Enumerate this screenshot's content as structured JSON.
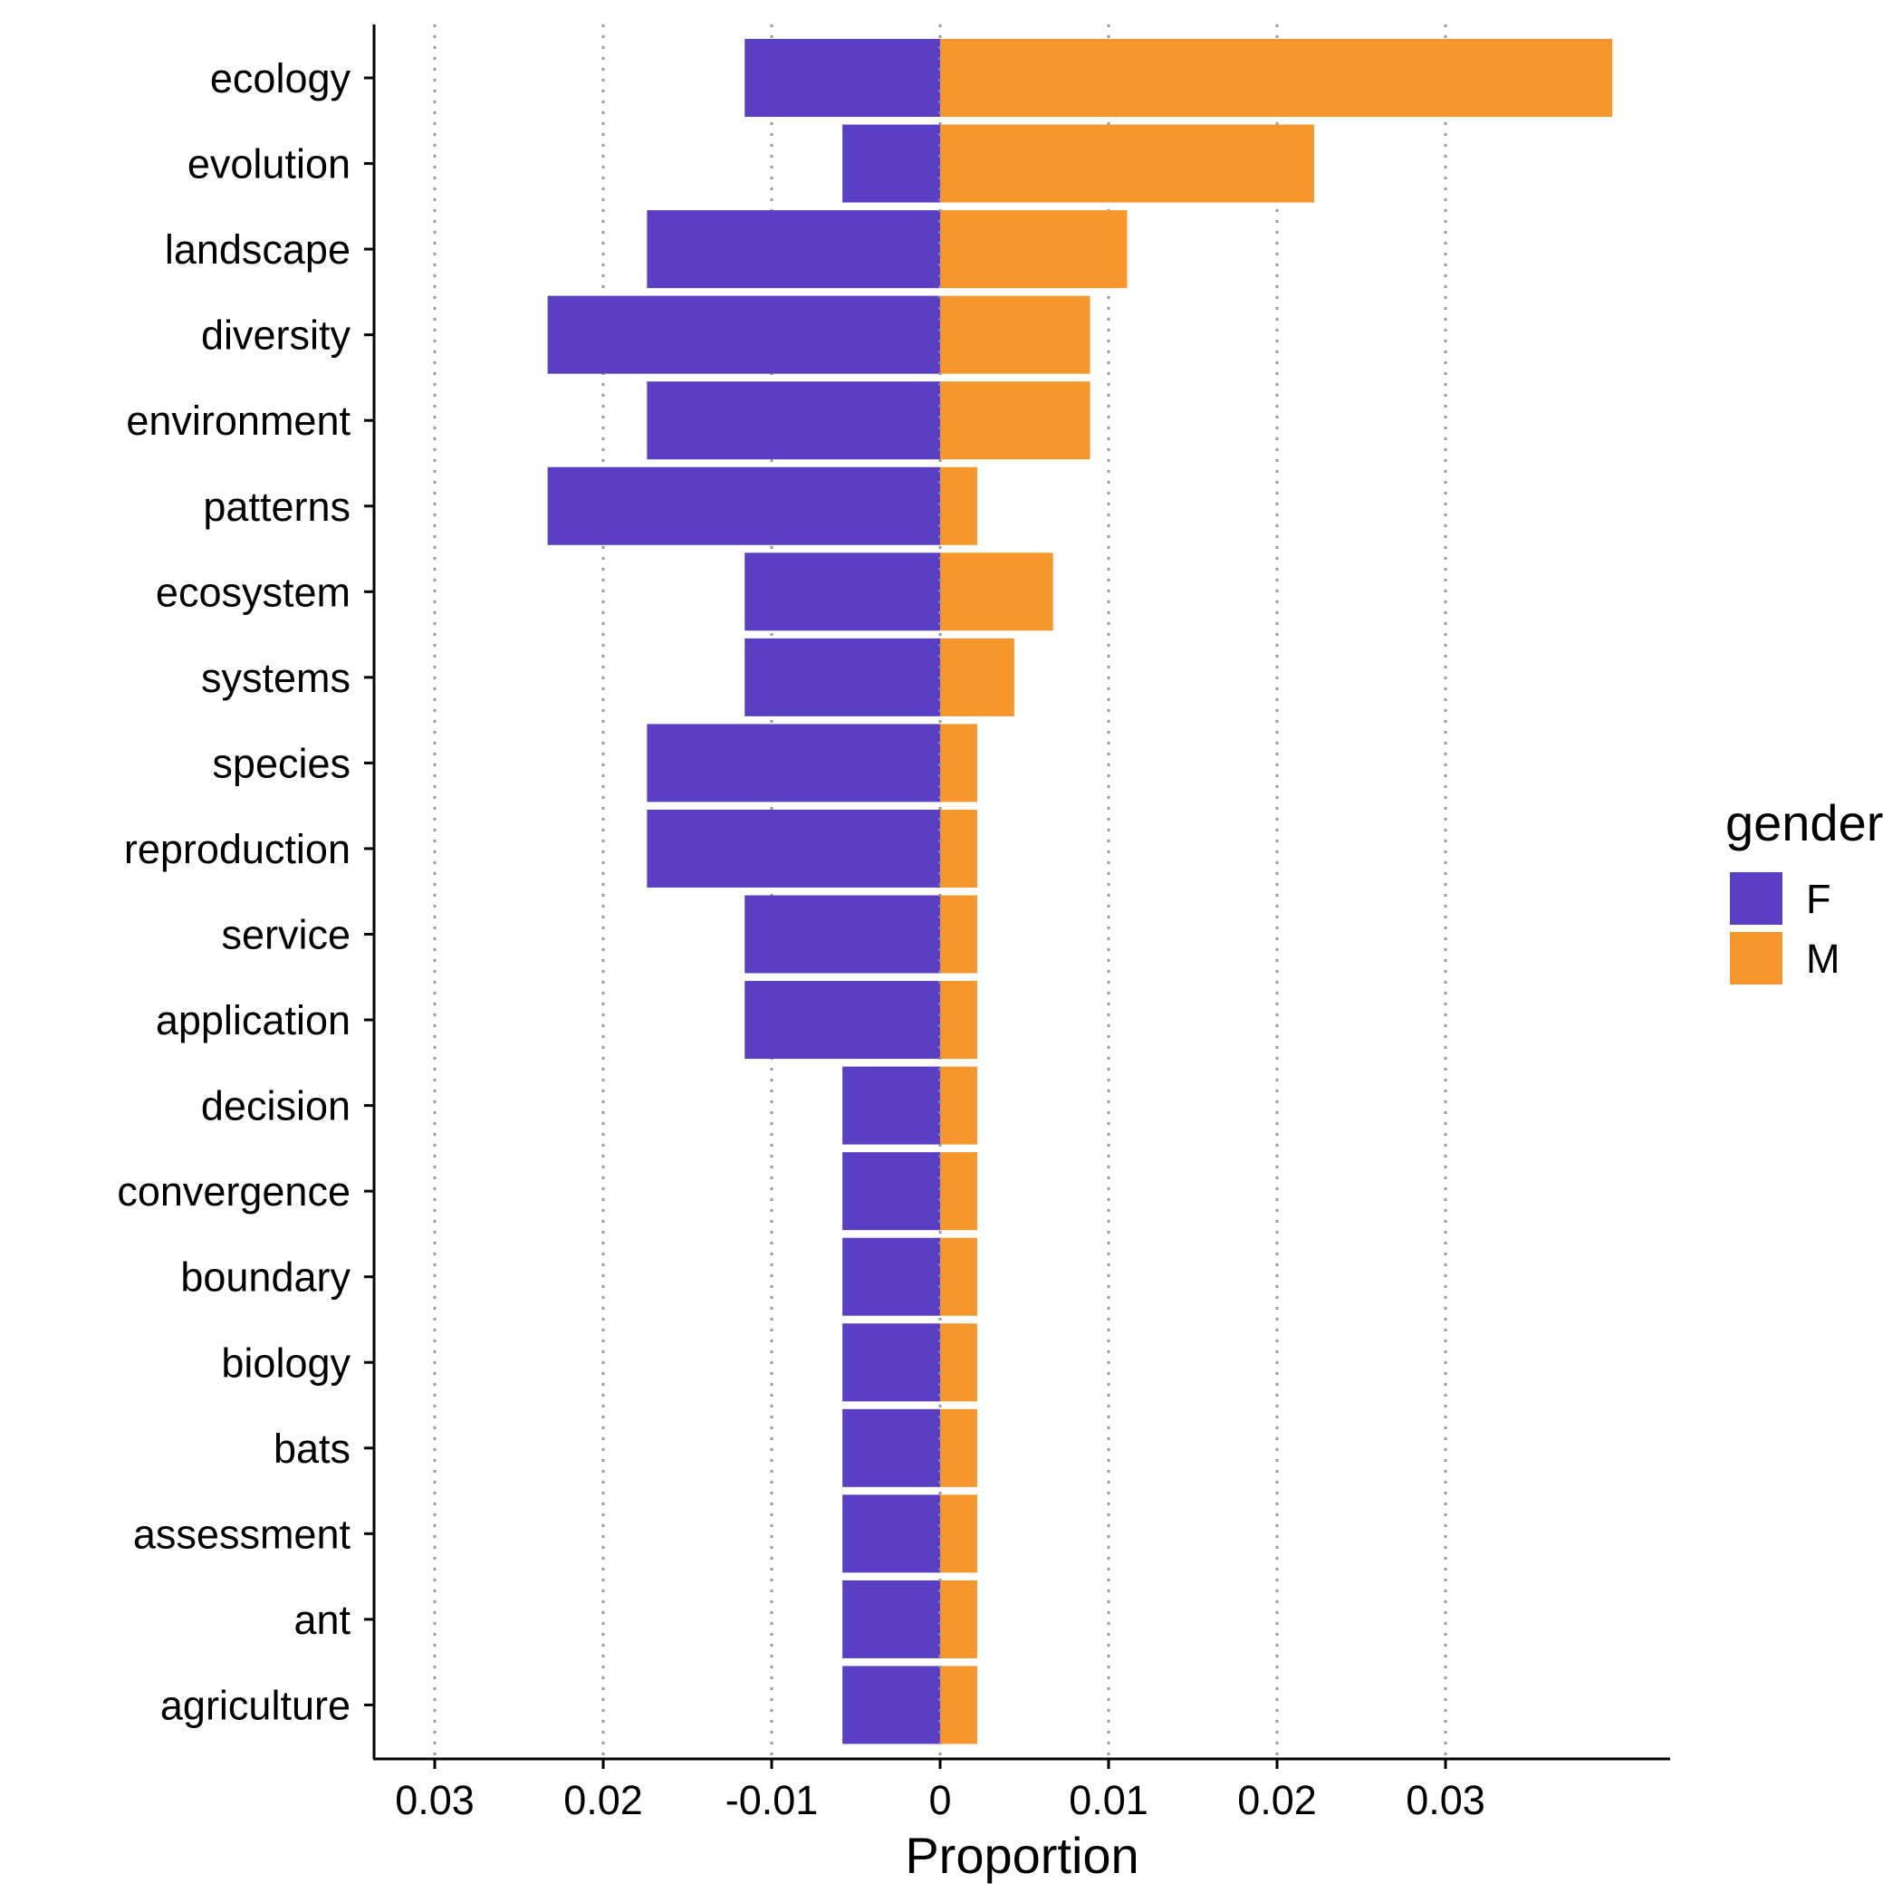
{
  "chart_data": {
    "type": "bar",
    "orientation": "horizontal",
    "layout": "diverging",
    "categories": [
      "ecology",
      "evolution",
      "landscape",
      "diversity",
      "environment",
      "patterns",
      "ecosystem",
      "systems",
      "species",
      "reproduction",
      "service",
      "application",
      "decision",
      "convergence",
      "boundary",
      "biology",
      "bats",
      "assessment",
      "ant",
      "agriculture"
    ],
    "series": [
      {
        "name": "F",
        "color": "#5a3fc4",
        "values": [
          -0.0116,
          -0.0058,
          -0.0174,
          -0.0233,
          -0.0174,
          -0.0233,
          -0.0116,
          -0.0116,
          -0.0174,
          -0.0174,
          -0.0116,
          -0.0116,
          -0.0058,
          -0.0058,
          -0.0058,
          -0.0058,
          -0.0058,
          -0.0058,
          -0.0058,
          -0.0058
        ]
      },
      {
        "name": "M",
        "color": "#f7962b",
        "values": [
          0.0399,
          0.0222,
          0.0111,
          0.0089,
          0.0089,
          0.0022,
          0.0067,
          0.0044,
          0.0022,
          0.0022,
          0.0022,
          0.0022,
          0.0022,
          0.0022,
          0.0022,
          0.0022,
          0.0022,
          0.0022,
          0.0022,
          0.0022
        ]
      }
    ],
    "xlabel": "Proportion",
    "ylabel": "",
    "xlim": [
      -0.0335,
      0.0434
    ],
    "xticks": [
      -0.03,
      -0.02,
      -0.01,
      0,
      0.01,
      0.02,
      0.03
    ],
    "xtick_labels": [
      "0.03",
      "0.02",
      "-0.01",
      "0",
      "0.01",
      "0.02",
      "0.03"
    ],
    "grid": "vertical dotted",
    "legend": {
      "title": "gender",
      "position": "right"
    }
  }
}
